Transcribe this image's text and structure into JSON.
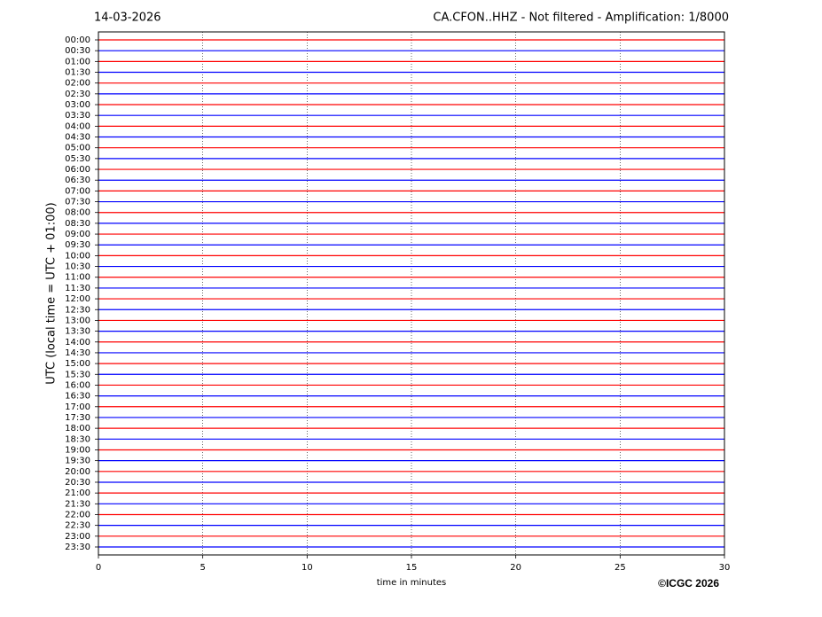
{
  "chart_data": {
    "type": "helicorder",
    "title": "14-03-2026",
    "subtitle": "CA.CFON..HHZ - Not filtered - Amplification: 1/8000",
    "y_label": "UTC (local time = UTC + 01:00)",
    "x_label": "time in minutes",
    "credit": "©ICGC 2026",
    "categories": [
      "00:00",
      "00:30",
      "01:00",
      "01:30",
      "02:00",
      "02:30",
      "03:00",
      "03:30",
      "04:00",
      "04:30",
      "05:00",
      "05:30",
      "06:00",
      "06:30",
      "07:00",
      "07:30",
      "08:00",
      "08:30",
      "09:00",
      "09:30",
      "10:00",
      "10:30",
      "11:00",
      "11:30",
      "12:00",
      "12:30",
      "13:00",
      "13:30",
      "14:00",
      "14:30",
      "15:00",
      "15:30",
      "16:00",
      "16:30",
      "17:00",
      "17:30",
      "18:00",
      "18:30",
      "19:00",
      "19:30",
      "20:00",
      "20:30",
      "21:00",
      "21:30",
      "22:00",
      "22:30",
      "23:00",
      "23:30"
    ],
    "colors": [
      "#ff0000",
      "#0000ff"
    ],
    "xlim": [
      0,
      30
    ],
    "xticks": [
      0,
      5,
      10,
      15,
      20,
      25,
      30
    ],
    "grid": true
  }
}
